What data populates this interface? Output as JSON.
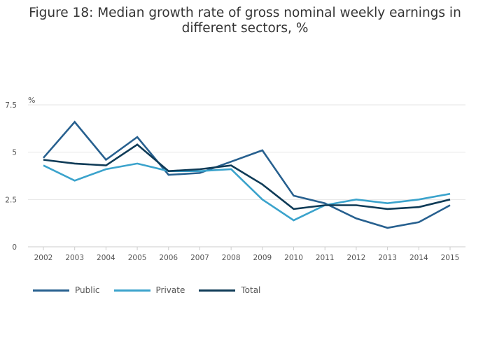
{
  "chart_data": {
    "type": "line",
    "title": "Figure 18: Median growth rate of gross nominal weekly earnings in different sectors, %",
    "title_lines": [
      "Figure 18: Median growth rate of gross nominal weekly earnings in",
      "different sectors, %"
    ],
    "ylabel": "%",
    "xlabel": "",
    "ylim": [
      0,
      7.5
    ],
    "yticks": [
      0,
      2.5,
      5,
      7.5
    ],
    "ytick_labels": [
      "0",
      "2.5",
      "5",
      "7.5"
    ],
    "categories": [
      "2002",
      "2003",
      "2004",
      "2005",
      "2006",
      "2007",
      "2008",
      "2009",
      "2010",
      "2011",
      "2012",
      "2013",
      "2014",
      "2015"
    ],
    "grid": true,
    "legend_position": "bottom-left",
    "series": [
      {
        "name": "Public",
        "color": "#27608f",
        "values": [
          4.7,
          6.6,
          4.6,
          5.8,
          3.8,
          3.9,
          4.5,
          5.1,
          2.7,
          2.3,
          1.5,
          1.0,
          1.3,
          2.2
        ]
      },
      {
        "name": "Private",
        "color": "#3ba3cc",
        "values": [
          4.3,
          3.5,
          4.1,
          4.4,
          4.0,
          4.0,
          4.1,
          2.5,
          1.4,
          2.2,
          2.5,
          2.3,
          2.5,
          2.8
        ]
      },
      {
        "name": "Total",
        "color": "#0f3b57",
        "values": [
          4.6,
          4.4,
          4.3,
          5.4,
          4.0,
          4.1,
          4.3,
          3.3,
          2.0,
          2.2,
          2.2,
          2.0,
          2.1,
          2.5
        ]
      }
    ]
  }
}
